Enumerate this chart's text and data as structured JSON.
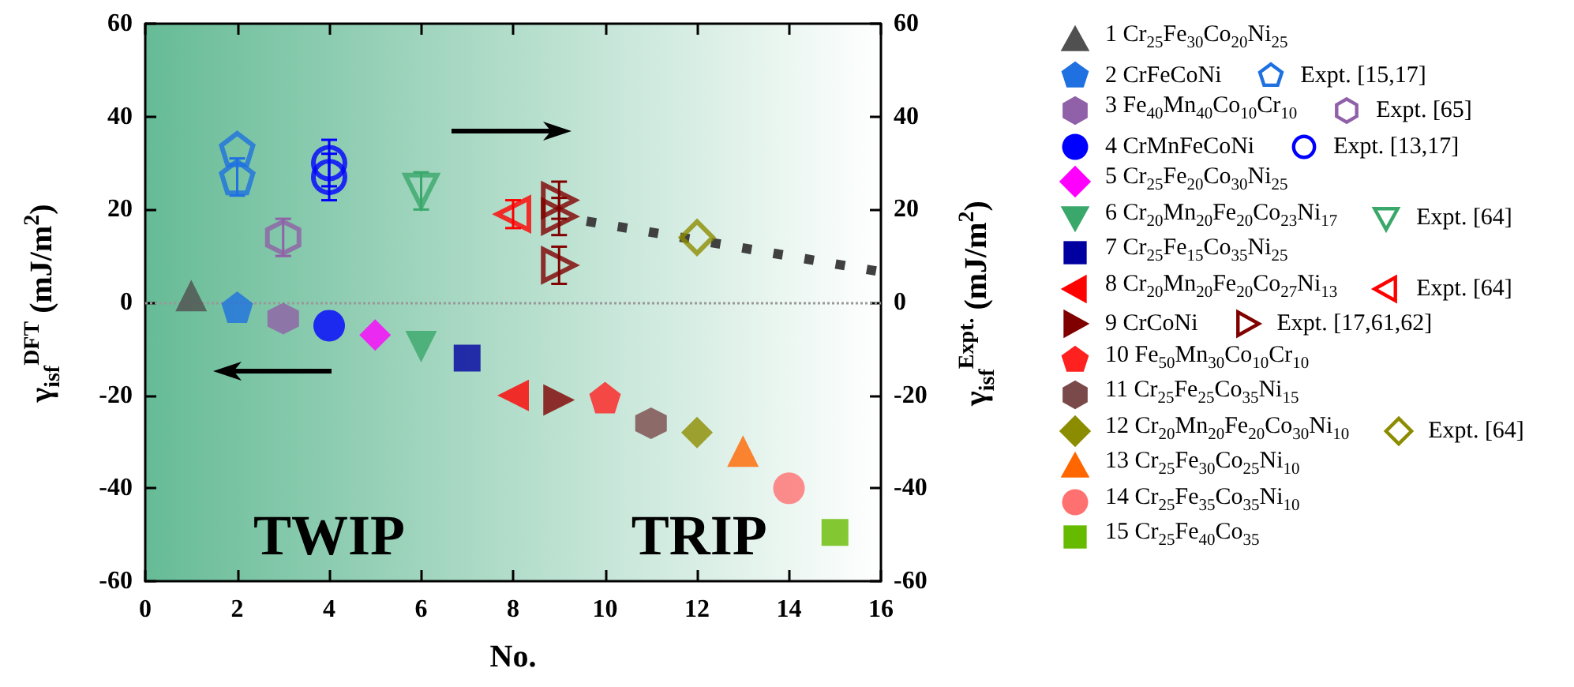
{
  "chart_data": {
    "type": "scatter",
    "xlabel": "No.",
    "ylabel": "γ$_{isf}$$^{DFT}$ (mJ/m$^{2}$)",
    "y2label": "γ$_{isf}$$^{Expt.}$ (mJ/m$^{2}$)",
    "xlim": [
      0,
      16
    ],
    "xticks": [
      0,
      2,
      4,
      6,
      8,
      10,
      12,
      14,
      16
    ],
    "ylim": [
      -60,
      60
    ],
    "yticks": [
      -60,
      -40,
      -20,
      0,
      20,
      40,
      60
    ],
    "y2lim": [
      -60,
      60
    ],
    "y2ticks": [
      -60,
      -40,
      -20,
      0,
      20,
      40,
      60
    ],
    "grid": false,
    "legend": "right",
    "ref_lines": [
      {
        "axis": "y",
        "value": 0,
        "color": "#999999",
        "line_style": "dotted"
      }
    ],
    "annotations": [
      "TWIP",
      "TRIP"
    ],
    "series": [
      {
        "name": "1 Cr$_{25}$Fe$_{30}$Co$_{20}$Ni$_{25}$",
        "color": "#505050",
        "marker": "triangle",
        "x": [
          1
        ],
        "values": [
          1.5
        ]
      },
      {
        "name": "2 CrFeCoNi",
        "color": "#1f70e0",
        "x": [
          2
        ],
        "values": [
          -1
        ]
      },
      {
        "name": "Expt. [15,17]",
        "color": "#1f70e0",
        "axis": "y2",
        "x": [
          2,
          2
        ],
        "values": [
          33,
          27
        ],
        "errors": [
          null,
          4
        ]
      },
      {
        "name": "3 Fe$_{40}$Mn$_{40}$Co$_{10}$Cr$_{10}$",
        "color": "#9060a8",
        "x": [
          3
        ],
        "values": [
          -3.5
        ]
      },
      {
        "name": "Expt. [65]",
        "color": "#9060a8",
        "axis": "y2",
        "x": [
          3
        ],
        "values": [
          14
        ],
        "errors": [
          4
        ]
      },
      {
        "name": "4 CrMnFeCoNi",
        "color": "#0000ff",
        "marker": "circle",
        "x": [
          4
        ],
        "values": [
          -5
        ]
      },
      {
        "name": "Expt. [13,17]",
        "color": "#0000ff",
        "marker": "circle",
        "axis": "y2",
        "x": [
          4,
          4
        ],
        "values": [
          30,
          27
        ],
        "errors": [
          5,
          5
        ]
      },
      {
        "name": "5 Cr$_{25}$Fe$_{20}$Co$_{30}$Ni$_{25}$",
        "color": "#ff00ff",
        "marker": "diamond",
        "x": [
          5
        ],
        "values": [
          -7
        ]
      },
      {
        "name": "6 Cr$_{20}$Mn$_{20}$Fe$_{20}$Co$_{23}$Ni$_{17}$",
        "color": "#3aa86a",
        "marker": "triangle-down",
        "x": [
          6
        ],
        "values": [
          -9.5
        ]
      },
      {
        "name": "Expt. [64]",
        "color": "#3aa86a",
        "marker": "triangle-down",
        "axis": "y2",
        "x": [
          6
        ],
        "values": [
          24
        ],
        "errors": [
          4
        ]
      },
      {
        "name": "7 Cr$_{25}$Fe$_{15}$Co$_{35}$Ni$_{25}$",
        "color": "#0000a0",
        "marker": "square",
        "x": [
          7
        ],
        "values": [
          -12
        ]
      },
      {
        "name": "8 Cr$_{20}$Mn$_{20}$Fe$_{20}$Co$_{27}$Ni$_{13}$",
        "color": "#ff0000",
        "marker": "triangle-left",
        "x": [
          8
        ],
        "values": [
          -20
        ]
      },
      {
        "name": "Expt. [64]",
        "color": "#ff0000",
        "marker": "triangle-left",
        "axis": "y2",
        "x": [
          8
        ],
        "values": [
          19
        ],
        "errors": [
          3
        ]
      },
      {
        "name": "9 CrCoNi",
        "color": "#800000",
        "marker": "triangle-right",
        "x": [
          9
        ],
        "values": [
          -21
        ]
      },
      {
        "name": "Expt. [17,61,62]",
        "color": "#800000",
        "marker": "triangle-right",
        "axis": "y2",
        "x": [
          9,
          9,
          9
        ],
        "values": [
          22,
          18.5,
          8
        ],
        "errors": [
          4,
          4,
          4
        ]
      },
      {
        "name": "10 Fe$_{50}$Mn$_{30}$Co$_{10}$Cr$_{10}$",
        "color": "#ff2020",
        "x": [
          10
        ],
        "values": [
          -20.5
        ]
      },
      {
        "name": "11 Cr$_{25}$Fe$_{25}$Co$_{35}$Ni$_{15}$",
        "color": "#7a4a4a",
        "x": [
          11
        ],
        "values": [
          -26
        ]
      },
      {
        "name": "12 Cr$_{20}$Mn$_{20}$Fe$_{20}$Co$_{30}$Ni$_{10}$",
        "color": "#8c8c00",
        "marker": "diamond",
        "x": [
          12
        ],
        "values": [
          -28
        ]
      },
      {
        "name": "Expt. [64]",
        "color": "#8c8c00",
        "marker": "diamond",
        "axis": "y2",
        "x": [
          12
        ],
        "values": [
          14
        ]
      },
      {
        "name": "13 Cr$_{25}$Fe$_{30}$Co$_{25}$Ni$_{10}$",
        "color": "#ff6600",
        "marker": "triangle",
        "x": [
          13
        ],
        "values": [
          -32
        ]
      },
      {
        "name": "14 Cr$_{25}$Fe$_{35}$Co$_{35}$Ni$_{10}$",
        "color": "#ff7070",
        "marker": "circle",
        "x": [
          14
        ],
        "values": [
          -40
        ]
      },
      {
        "name": "15 Cr$_{25}$Fe$_{40}$Co$_{35}$",
        "color": "#66bb00",
        "marker": "square",
        "x": [
          15
        ],
        "values": [
          -49.5
        ]
      },
      {
        "type": "line",
        "color": "#404040",
        "marker": "none",
        "line_style": "dotted",
        "axis": "y2",
        "x": [
          9.6,
          16
        ],
        "values": [
          17.5,
          6.6
        ]
      }
    ]
  }
}
